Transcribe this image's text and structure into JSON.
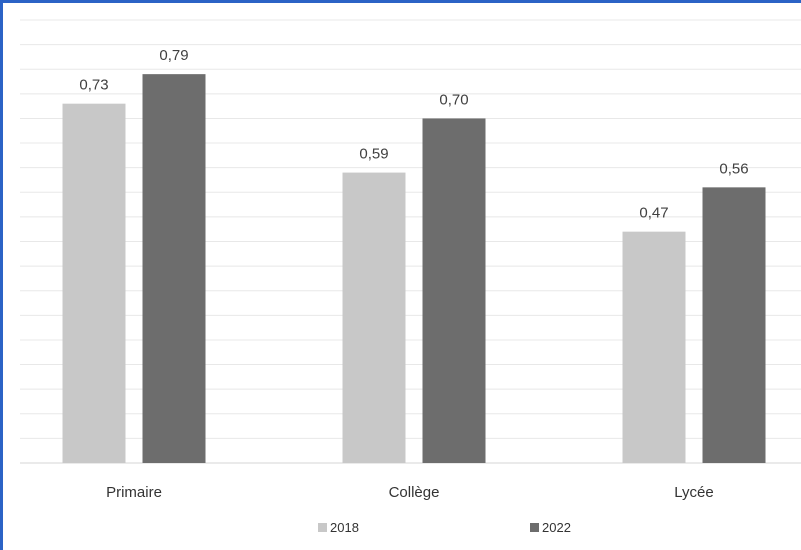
{
  "chart_data": {
    "type": "bar",
    "categories": [
      "Primaire",
      "Collège",
      "Lycée"
    ],
    "series": [
      {
        "name": "2018",
        "values": [
          0.73,
          0.59,
          0.47
        ],
        "labels": [
          "0,73",
          "0,59",
          "0,47"
        ]
      },
      {
        "name": "2022",
        "values": [
          0.79,
          0.7,
          0.56
        ],
        "labels": [
          "0,79",
          "0,70",
          "0,56"
        ]
      }
    ],
    "ylim": [
      0,
      0.9
    ],
    "grid": true,
    "legend": "bottom",
    "colors": {
      "2018": "#c8c8c8",
      "2022": "#6d6d6d",
      "border": "#2b63c6"
    }
  }
}
